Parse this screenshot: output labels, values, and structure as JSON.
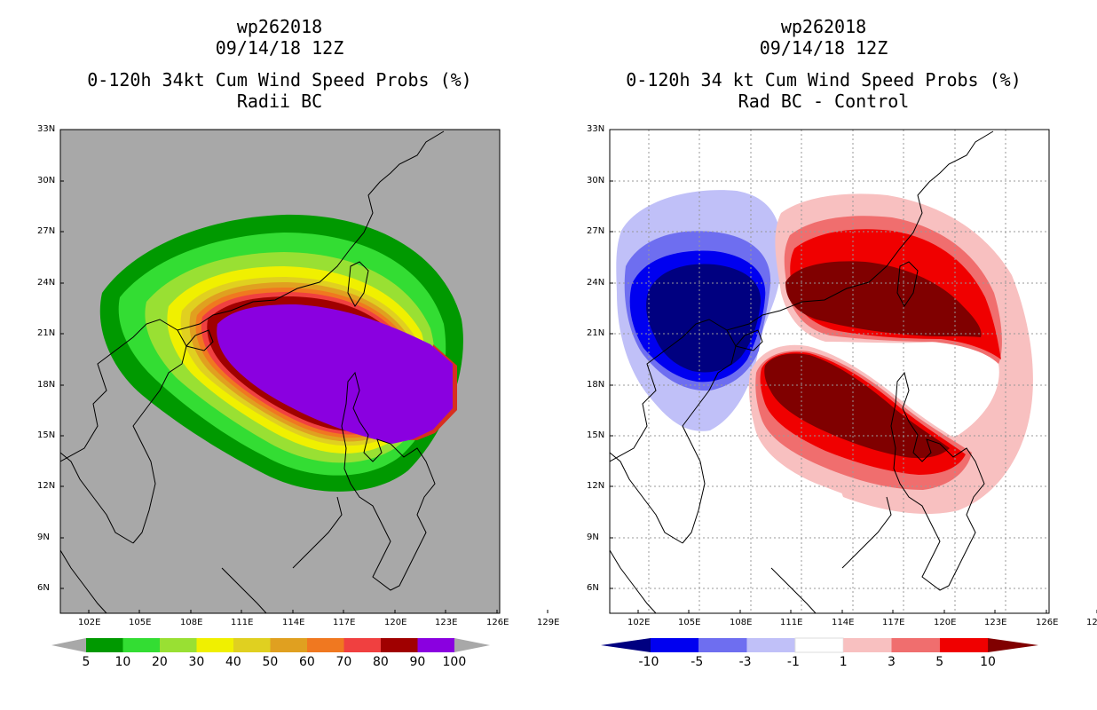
{
  "left_panel": {
    "title_line1": "wp262018",
    "title_line2": "09/14/18 12Z",
    "title_line3": "0-120h 34kt Cum Wind Speed Probs (%)",
    "title_line4": "Radii BC",
    "colorbar_labels": [
      "5",
      "10",
      "20",
      "30",
      "40",
      "50",
      "60",
      "70",
      "80",
      "90",
      "100"
    ],
    "colorbar_colors": [
      "#009900",
      "#33dd33",
      "#99e033",
      "#f0f000",
      "#e0d020",
      "#e0a020",
      "#f07820",
      "#f04040",
      "#a00000",
      "#8a00e0"
    ]
  },
  "right_panel": {
    "title_line1": "wp262018",
    "title_line2": "09/14/18 12Z",
    "title_line3": "0-120h 34 kt Cum Wind Speed Probs (%)",
    "title_line4": "Rad BC - Control",
    "colorbar_labels": [
      "-10",
      "-5",
      "-3",
      "-1",
      "1",
      "3",
      "5",
      "10"
    ],
    "colorbar_colors": [
      "#0000f0",
      "#6e6ef0",
      "#c0c0f8",
      "#ffffff",
      "#f8c0c0",
      "#f06e6e",
      "#f00000"
    ],
    "colorbar_end_low": "#000080",
    "colorbar_end_high": "#800000"
  },
  "axes": {
    "lat_labels": [
      "33N",
      "30N",
      "27N",
      "24N",
      "21N",
      "18N",
      "15N",
      "12N",
      "9N",
      "6N"
    ],
    "lon_labels": [
      "102E",
      "105E",
      "108E",
      "111E",
      "114E",
      "117E",
      "120E",
      "123E",
      "126E",
      "129E"
    ]
  }
}
